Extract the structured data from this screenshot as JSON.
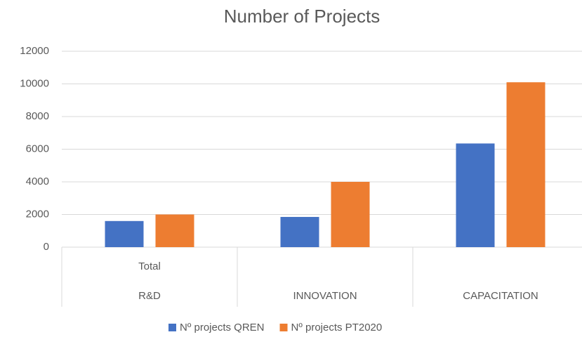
{
  "chart_data": {
    "type": "bar",
    "title": "Number of Projects",
    "categories": [
      "R&D",
      "INNOVATION",
      "CAPACITATION"
    ],
    "subcategories": [
      "Total",
      null,
      null
    ],
    "series": [
      {
        "name": "Nº projects QREN",
        "color": "#4472c4",
        "values": [
          1600,
          1850,
          6350
        ]
      },
      {
        "name": "Nº projects PT2020",
        "color": "#ed7d31",
        "values": [
          2000,
          4000,
          10100
        ]
      }
    ],
    "ylim": [
      0,
      12000
    ],
    "yticks": [
      0,
      2000,
      4000,
      6000,
      8000,
      10000,
      12000
    ],
    "grid": true,
    "legend": "bottom"
  }
}
